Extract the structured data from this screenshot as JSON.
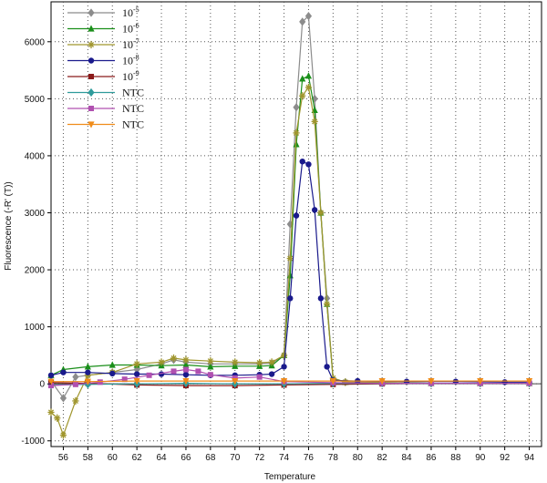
{
  "chart_data": {
    "type": "line",
    "xlabel": "Temperature",
    "ylabel": "Fluorescence (-R' (T))",
    "xlim": [
      55,
      95
    ],
    "ylim": [
      -1100,
      6700
    ],
    "x_ticks": [
      "56",
      "58",
      "60",
      "62",
      "64",
      "66",
      "68",
      "70",
      "72",
      "74",
      "76",
      "78",
      "80",
      "82",
      "84",
      "86",
      "88",
      "90",
      "92",
      "94"
    ],
    "y_ticks": [
      "-1000",
      "0",
      "1000",
      "2000",
      "3000",
      "4000",
      "5000",
      "6000"
    ],
    "grid": "dotted",
    "legend_position": "top-left",
    "series": [
      {
        "name": "10-5",
        "base": "10",
        "exp": "-5",
        "color": "#8c8c8c",
        "marker": "diamond",
        "x": [
          55,
          56,
          57,
          58,
          60,
          62,
          64,
          65,
          66,
          68,
          70,
          72,
          73,
          74,
          74.5,
          75,
          75.5,
          76,
          76.5,
          77,
          77.5,
          78,
          79,
          82,
          86,
          90,
          94
        ],
        "y": [
          50,
          -250,
          120,
          150,
          200,
          250,
          350,
          420,
          380,
          350,
          350,
          350,
          360,
          500,
          2800,
          4850,
          6350,
          6450,
          5000,
          3000,
          1500,
          80,
          30,
          20,
          10,
          10,
          10
        ]
      },
      {
        "name": "10-6",
        "base": "10",
        "exp": "-6",
        "color": "#1a8f1a",
        "marker": "triangle",
        "x": [
          55,
          56,
          58,
          60,
          62,
          64,
          66,
          68,
          70,
          72,
          73,
          74,
          74.5,
          75,
          75.5,
          76,
          76.5,
          77,
          77.5,
          78,
          79,
          82,
          86,
          90,
          94
        ],
        "y": [
          150,
          250,
          300,
          330,
          330,
          320,
          330,
          300,
          310,
          310,
          320,
          500,
          1900,
          4200,
          5350,
          5400,
          4800,
          3000,
          1400,
          100,
          30,
          20,
          10,
          10,
          10
        ]
      },
      {
        "name": "10-7",
        "base": "10",
        "exp": "-7",
        "color": "#a0962e",
        "marker": "star",
        "x": [
          55,
          55.5,
          56,
          57,
          58,
          60,
          62,
          64,
          65,
          66,
          68,
          70,
          72,
          73,
          74,
          74.5,
          75,
          75.5,
          76,
          76.5,
          77,
          77.5,
          78,
          79,
          82,
          86,
          90,
          94
        ],
        "y": [
          -500,
          -600,
          -900,
          -300,
          150,
          200,
          350,
          380,
          450,
          420,
          400,
          380,
          370,
          380,
          500,
          2200,
          4400,
          5050,
          5200,
          4600,
          3000,
          1400,
          100,
          30,
          20,
          10,
          10,
          10
        ]
      },
      {
        "name": "10-8",
        "base": "10",
        "exp": "-8",
        "color": "#1a1a8c",
        "marker": "circle",
        "x": [
          55,
          56,
          58,
          60,
          62,
          64,
          66,
          68,
          70,
          72,
          73,
          74,
          74.5,
          75,
          75.5,
          76,
          76.5,
          77,
          77.5,
          78,
          80,
          84,
          88,
          92,
          94
        ],
        "y": [
          150,
          200,
          200,
          180,
          170,
          170,
          160,
          150,
          150,
          160,
          170,
          300,
          1500,
          2950,
          3900,
          3850,
          3050,
          1500,
          300,
          60,
          50,
          40,
          40,
          30,
          30
        ]
      },
      {
        "name": "10-9",
        "base": "10",
        "exp": "-9",
        "color": "#8b1a1a",
        "marker": "square",
        "x": [
          55,
          58,
          62,
          66,
          70,
          74,
          78,
          82,
          86,
          90,
          94
        ],
        "y": [
          20,
          10,
          -20,
          -30,
          -30,
          -20,
          -10,
          0,
          10,
          10,
          10
        ]
      },
      {
        "name": "NTC",
        "color": "#2e9b9b",
        "marker": "diamond",
        "x": [
          55,
          58,
          62,
          66,
          70,
          74,
          78,
          82,
          86,
          90,
          94
        ],
        "y": [
          -20,
          -10,
          0,
          10,
          0,
          0,
          10,
          10,
          10,
          10,
          10
        ]
      },
      {
        "name": "NTC",
        "color": "#b050b0",
        "marker": "square",
        "x": [
          55,
          57,
          59,
          61,
          63,
          65,
          66,
          67,
          68,
          70,
          72,
          74,
          78,
          82,
          86,
          90,
          94
        ],
        "y": [
          -30,
          -10,
          30,
          80,
          150,
          220,
          250,
          220,
          160,
          100,
          120,
          40,
          20,
          10,
          10,
          10,
          10
        ]
      },
      {
        "name": "NTC",
        "color": "#f08c1a",
        "marker": "triangle-down",
        "x": [
          55,
          58,
          62,
          66,
          70,
          74,
          78,
          82,
          86,
          90,
          94
        ],
        "y": [
          40,
          40,
          50,
          50,
          50,
          50,
          50,
          50,
          50,
          50,
          50
        ]
      }
    ]
  }
}
